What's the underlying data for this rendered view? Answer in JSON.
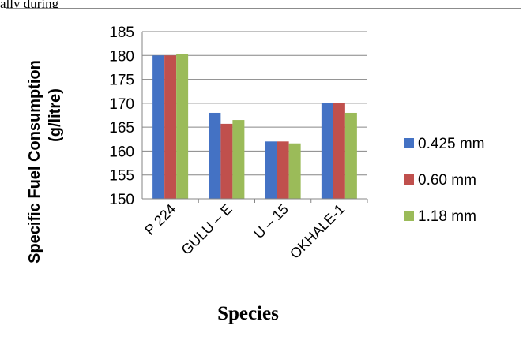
{
  "page": {
    "top_text": "ally during"
  },
  "chart_data": {
    "type": "bar",
    "categories": [
      "P 224",
      "GULU – E",
      "U – 15",
      "OKHALE-1"
    ],
    "series": [
      {
        "name": "0.425 mm",
        "values": [
          180,
          168,
          162,
          170
        ],
        "color": "#4472c4"
      },
      {
        "name": "0.60 mm",
        "values": [
          180,
          165.7,
          162,
          170
        ],
        "color": "#c0504d"
      },
      {
        "name": "1.18 mm",
        "values": [
          180.3,
          166.5,
          161.6,
          168
        ],
        "color": "#9bbb59"
      }
    ],
    "ylabel_line1": "Specific Fuel Consumption",
    "ylabel_line2": "(g/litre)",
    "xlabel": "Species",
    "ylim": [
      150,
      185
    ],
    "yticks": [
      150,
      155,
      160,
      165,
      170,
      175,
      180,
      185
    ],
    "grid": true,
    "legend_position": "right"
  }
}
